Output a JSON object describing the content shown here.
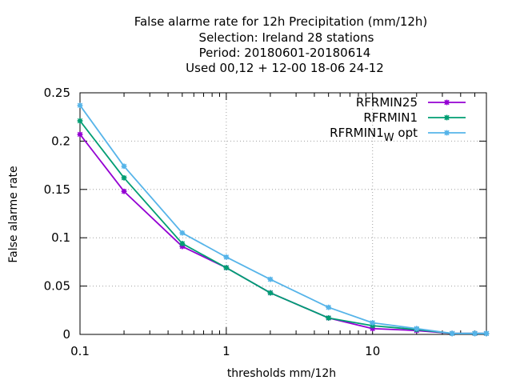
{
  "chart_data": {
    "type": "line",
    "title_lines": [
      "False alarme rate  for 12h Precipitation (mm/12h)",
      "Selection: Ireland     28 stations",
      "Period: 20180601-20180614",
      "Used  00,12  + 12-00 18-06 24-12"
    ],
    "xlabel": "thresholds mm/12h",
    "ylabel": "False alarme rate",
    "x_scale": "log",
    "xlim": [
      0.1,
      60
    ],
    "ylim": [
      0,
      0.25
    ],
    "x_ticks": [
      {
        "value": 0.1,
        "label": "0.1"
      },
      {
        "value": 1,
        "label": "1"
      },
      {
        "value": 10,
        "label": "10"
      }
    ],
    "y_ticks": [
      {
        "value": 0,
        "label": "0"
      },
      {
        "value": 0.05,
        "label": "0.05"
      },
      {
        "value": 0.1,
        "label": "0.1"
      },
      {
        "value": 0.15,
        "label": "0.15"
      },
      {
        "value": 0.2,
        "label": "0.2"
      },
      {
        "value": 0.25,
        "label": "0.25"
      }
    ],
    "grid": true,
    "legend_position": "top-right",
    "series": [
      {
        "name": "RFRMIN25",
        "color": "#9400d3",
        "marker": "star",
        "x": [
          0.1,
          0.2,
          0.5,
          1,
          2,
          5,
          10,
          20,
          35,
          50,
          60
        ],
        "y": [
          0.207,
          0.148,
          0.091,
          0.069,
          0.043,
          0.017,
          0.006,
          0.004,
          0.001,
          0.001,
          0.001
        ]
      },
      {
        "name": "RFRMIN1",
        "color": "#009e73",
        "marker": "star",
        "x": [
          0.1,
          0.2,
          0.5,
          1,
          2,
          5,
          10,
          20,
          35,
          50,
          60
        ],
        "y": [
          0.221,
          0.162,
          0.094,
          0.069,
          0.043,
          0.017,
          0.009,
          0.005,
          0.001,
          0.001,
          0.001
        ]
      },
      {
        "name": "RFRMIN1",
        "name_subscript": "W",
        "name_suffix": "opt",
        "color": "#56b4e9",
        "marker": "star",
        "x": [
          0.1,
          0.2,
          0.5,
          1,
          2,
          5,
          10,
          20,
          35,
          50,
          60
        ],
        "y": [
          0.237,
          0.174,
          0.105,
          0.08,
          0.057,
          0.028,
          0.012,
          0.006,
          0.001,
          0.001,
          0.001
        ]
      }
    ]
  }
}
